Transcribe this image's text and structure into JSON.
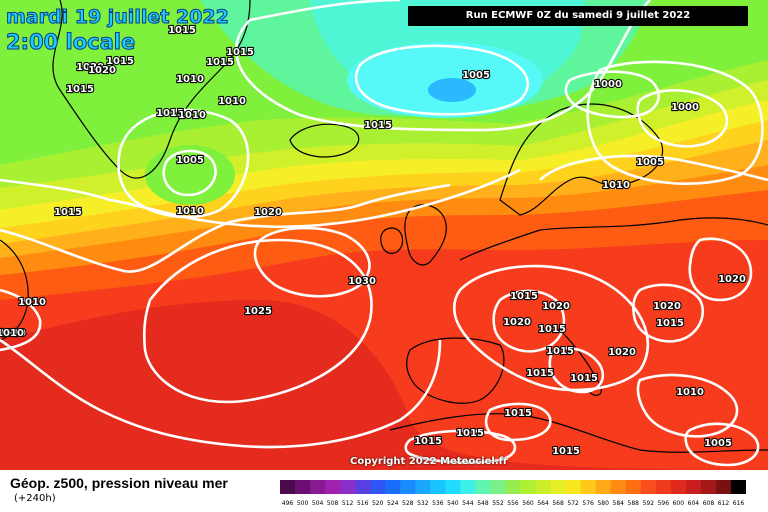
{
  "header": {
    "date": "mardi 19 juillet 2022",
    "time": "2:00 locale",
    "run": "Run ECMWF 0Z du samedi 9 juillet 2022"
  },
  "footer": {
    "title": "Géop. z500, pression niveau mer",
    "lead": "(+240h)",
    "copyright": "Copyright 2022 Meteociel.fr"
  },
  "legend": {
    "ticks": [
      "496",
      "500",
      "504",
      "508",
      "512",
      "516",
      "520",
      "524",
      "528",
      "532",
      "536",
      "540",
      "544",
      "548",
      "552",
      "556",
      "560",
      "564",
      "568",
      "572",
      "576",
      "580",
      "584",
      "588",
      "592",
      "596",
      "600",
      "604",
      "608",
      "612",
      "616"
    ],
    "colors": [
      "#4b0a4b",
      "#6b1070",
      "#8a1a92",
      "#a020b0",
      "#8a2fc7",
      "#5a3ee0",
      "#2f56f5",
      "#1a6cfa",
      "#1a8cff",
      "#1aa8ff",
      "#1ac4ff",
      "#22dcff",
      "#3ef0ea",
      "#5ff5b0",
      "#7cf088",
      "#94ec4e",
      "#aef032",
      "#caee2a",
      "#e6f028",
      "#f8e61e",
      "#ffc81a",
      "#ffa818",
      "#ff8a14",
      "#ff6e10",
      "#fa4e1e",
      "#f03a1e",
      "#e02a1e",
      "#c81e1e",
      "#a41818",
      "#7a1010",
      "#000000"
    ]
  },
  "map": {
    "colors": {
      "deep_red": "#e52b1e",
      "red": "#f63c1c",
      "orange_red": "#fe5c12",
      "orange": "#ff8c10",
      "light_orange": "#ffb01a",
      "yellow_orange": "#ffd21e",
      "yellow": "#f6ef28",
      "yellow_green": "#d0f02c",
      "light_green": "#aaf032",
      "green": "#7ff03c",
      "mint": "#5ff59c",
      "aqua": "#4ef6d6",
      "cyan": "#56f8f8",
      "low_core": "#2ab8ff",
      "isobar": "#ffffff",
      "coast": "#000000"
    },
    "isobar_labels": [
      "1015",
      "1015",
      "1015",
      "1020",
      "1020",
      "1015",
      "1015",
      "1010",
      "1015",
      "1010",
      "1010",
      "1005",
      "1015",
      "1000",
      "1000",
      "1010",
      "1005",
      "1005",
      "1010",
      "1015",
      "1010",
      "1020",
      "1015",
      "1010",
      "1010",
      "1030",
      "1025",
      "1015",
      "1020",
      "1020",
      "1015",
      "1020",
      "1015",
      "1020",
      "1015",
      "1015",
      "1015",
      "1020",
      "1010",
      "1015",
      "1015",
      "1015",
      "1005"
    ]
  }
}
